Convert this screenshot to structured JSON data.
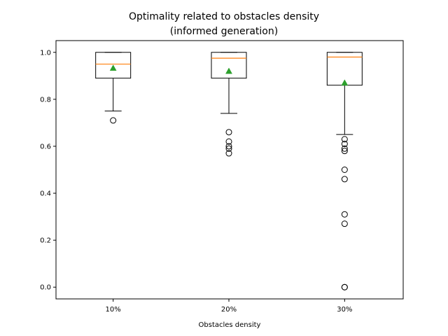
{
  "chart_data": {
    "type": "box",
    "title_lines": [
      "Optimality related to obstacles density",
      "(informed generation)"
    ],
    "xlabel": "Obstacles density",
    "ylabel": "",
    "categories": [
      "10%",
      "20%",
      "30%"
    ],
    "ylim": [
      -0.05,
      1.05
    ],
    "yticks": [
      0.0,
      0.2,
      0.4,
      0.6,
      0.8,
      1.0
    ],
    "ytick_labels": [
      "0.0",
      "0.2",
      "0.4",
      "0.6",
      "0.8",
      "1.0"
    ],
    "boxes": [
      {
        "category": "10%",
        "whislo": 0.75,
        "q1": 0.89,
        "median": 0.95,
        "q3": 1.0,
        "whishi": 1.0,
        "mean": 0.933,
        "fliers": [
          0.71
        ]
      },
      {
        "category": "20%",
        "whislo": 0.74,
        "q1": 0.89,
        "median": 0.975,
        "q3": 1.0,
        "whishi": 1.0,
        "mean": 0.92,
        "fliers": [
          0.66,
          0.62,
          0.6,
          0.59,
          0.57
        ]
      },
      {
        "category": "30%",
        "whislo": 0.65,
        "q1": 0.86,
        "median": 0.98,
        "q3": 1.0,
        "whishi": 1.0,
        "mean": 0.87,
        "fliers": [
          0.63,
          0.61,
          0.59,
          0.58,
          0.5,
          0.46,
          0.31,
          0.27,
          0.0,
          0.0
        ]
      }
    ],
    "colors": {
      "box": "#000000",
      "median": "#ff7f0e",
      "mean": "#2ca02c",
      "flier": "#000000"
    },
    "grid": false,
    "legend": "none"
  }
}
